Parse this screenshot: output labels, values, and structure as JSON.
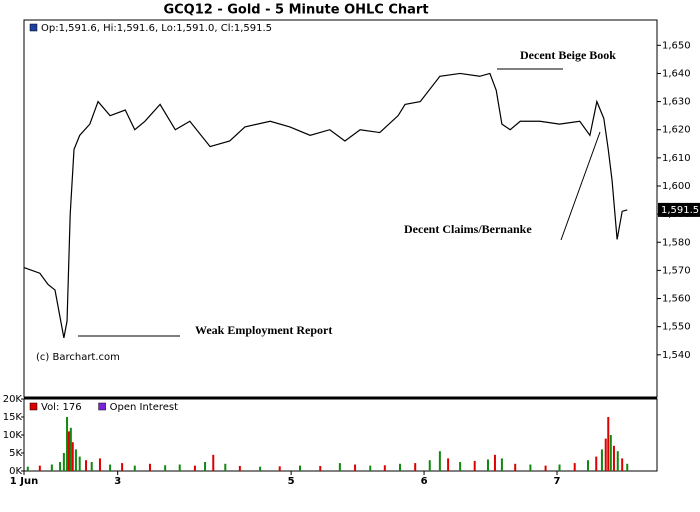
{
  "chart_data": [
    {
      "type": "line",
      "title": "GCQ12 - Gold - 5 Minute OHLC Chart",
      "credit": "(c) Barchart.com",
      "series": [
        {
          "name": "Op:1,591.6, Hi:1,591.6, Lo:1,591.0, Cl:1,591.5",
          "color": "#000000",
          "legend_color": "#1f3f9f",
          "x": [
            0,
            2.5,
            3.8,
            4.9,
            6.3,
            6.8,
            7.3,
            7.9,
            8.8,
            10.4,
            11.7,
            13.6,
            16.0,
            17.5,
            19.1,
            21.5,
            23.9,
            26.2,
            29.4,
            32.5,
            34.9,
            38.9,
            42.0,
            45.2,
            48.3,
            50.7,
            53.1,
            56.2,
            59.1,
            60.2,
            62.6,
            65.7,
            68.9,
            72.0,
            73.6,
            74.6,
            75.5,
            76.8,
            78.4,
            81.5,
            84.6,
            87.8,
            89.4,
            90.5,
            91.6,
            92.3,
            92.9,
            93.7,
            94.5,
            95.3
          ],
          "values": [
            1571,
            1569,
            1565,
            1563,
            1546,
            1552,
            1590,
            1613,
            1618,
            1622,
            1630,
            1625,
            1627,
            1620,
            1623,
            1629,
            1620,
            1623,
            1614,
            1616,
            1621,
            1623,
            1621,
            1618,
            1620,
            1616,
            1620,
            1619,
            1625,
            1629,
            1630,
            1639,
            1640,
            1639,
            1640,
            1634,
            1622,
            1620,
            1623,
            1623,
            1622,
            1623,
            1618,
            1630,
            1624,
            1613,
            1602,
            1581,
            1591,
            1591.5
          ]
        }
      ],
      "last_price": {
        "value": 1591.5,
        "label": "1,591.5"
      },
      "annotations": [
        "Decent Beige Book",
        "Decent Claims/Bernanke",
        "Weak Employment Report"
      ],
      "xlim": [
        0,
        100
      ],
      "ylim": [
        1525,
        1659
      ],
      "yticks": [
        {
          "value": 1540,
          "label": "1,540"
        },
        {
          "value": 1550,
          "label": "1,550"
        },
        {
          "value": 1560,
          "label": "1,560"
        },
        {
          "value": 1570,
          "label": "1,570"
        },
        {
          "value": 1580,
          "label": "1,580"
        },
        {
          "value": 1590,
          "label": "1,590"
        },
        {
          "value": 1600,
          "label": "1,600"
        },
        {
          "value": 1610,
          "label": "1,610"
        },
        {
          "value": 1620,
          "label": "1,620"
        },
        {
          "value": 1630,
          "label": "1,630"
        },
        {
          "value": 1640,
          "label": "1,640"
        },
        {
          "value": 1650,
          "label": "1,650"
        }
      ]
    },
    {
      "type": "bar",
      "series": [
        {
          "name": "Vol: 176",
          "color": "#dd0000",
          "x": [
            0.6,
            2.5,
            4.4,
            5.7,
            6.3,
            6.8,
            7.1,
            7.4,
            7.7,
            8.2,
            8.8,
            9.8,
            10.7,
            12.0,
            13.6,
            15.5,
            17.5,
            19.9,
            22.3,
            24.6,
            27.0,
            28.6,
            29.9,
            31.8,
            34.1,
            37.3,
            40.4,
            43.6,
            46.8,
            49.9,
            52.3,
            54.7,
            57.0,
            59.4,
            61.8,
            64.1,
            65.7,
            67.0,
            68.9,
            71.2,
            73.3,
            74.4,
            75.5,
            77.6,
            80.0,
            82.4,
            84.6,
            87.0,
            89.1,
            90.4,
            91.3,
            91.9,
            92.3,
            92.7,
            93.2,
            93.8,
            94.5,
            95.3
          ],
          "values": [
            1200,
            1500,
            1800,
            2500,
            5000,
            15000,
            11000,
            12000,
            8000,
            6000,
            4000,
            3000,
            2500,
            3500,
            1800,
            2200,
            1500,
            2000,
            1600,
            1800,
            1500,
            2500,
            4500,
            2000,
            1400,
            1200,
            1300,
            1500,
            1400,
            2200,
            1800,
            1500,
            1600,
            2000,
            2200,
            3000,
            5500,
            3500,
            2500,
            2800,
            3200,
            4500,
            3500,
            2000,
            1800,
            1500,
            1800,
            2200,
            3000,
            4000,
            6000,
            9000,
            15000,
            10000,
            7000,
            5500,
            3500,
            2000
          ],
          "bar_colors": [
            "#118811",
            "#dd0000",
            "#118811",
            "#118811",
            "#118811",
            "#118811",
            "#dd0000",
            "#118811",
            "#dd0000",
            "#118811",
            "#118811",
            "#dd0000",
            "#118811",
            "#dd0000",
            "#118811",
            "#dd0000",
            "#118811",
            "#dd0000",
            "#118811",
            "#118811",
            "#dd0000",
            "#118811",
            "#dd0000",
            "#118811",
            "#dd0000",
            "#118811",
            "#dd0000",
            "#118811",
            "#dd0000",
            "#118811",
            "#dd0000",
            "#118811",
            "#dd0000",
            "#118811",
            "#dd0000",
            "#118811",
            "#118811",
            "#dd0000",
            "#118811",
            "#dd0000",
            "#118811",
            "#dd0000",
            "#118811",
            "#dd0000",
            "#118811",
            "#dd0000",
            "#118811",
            "#dd0000",
            "#118811",
            "#dd0000",
            "#118811",
            "#dd0000",
            "#dd0000",
            "#118811",
            "#dd0000",
            "#118811",
            "#dd0000",
            "#118811"
          ]
        },
        {
          "name": "Open Interest",
          "color": "#7a22dd"
        }
      ],
      "xlim": [
        0,
        100
      ],
      "xticks": [
        {
          "value": 0,
          "label": "1 Jun"
        },
        {
          "value": 14.8,
          "label": "3"
        },
        {
          "value": 42.2,
          "label": "5"
        },
        {
          "value": 63.2,
          "label": "6"
        },
        {
          "value": 84.2,
          "label": "7"
        }
      ],
      "ylim": [
        0,
        20000
      ],
      "yticks": [
        {
          "value": 0,
          "label": "0K"
        },
        {
          "value": 5000,
          "label": "5K"
        },
        {
          "value": 10000,
          "label": "10K"
        },
        {
          "value": 15000,
          "label": "15K"
        },
        {
          "value": 20000,
          "label": "20K"
        }
      ]
    }
  ]
}
